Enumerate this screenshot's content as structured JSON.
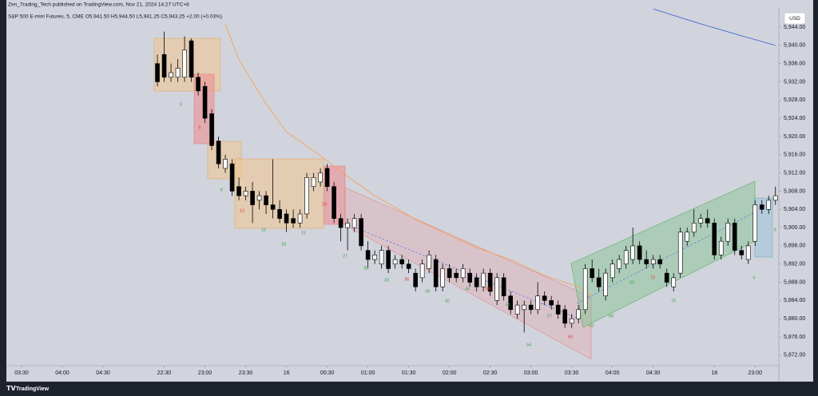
{
  "header": {
    "publisher": "Zen_Trading_Tech published on TradingView.com, Nov 21, 2024 14:27 UTC+8",
    "currency_button": "USD",
    "brand": "TradingView"
  },
  "chart_data": {
    "type": "candlestick",
    "title": "S&P 500 E-mini Futures, 5, CME  O5,941.50 H5,944.50 L5,941.25 C5,943.25 +2.00 (+0.03%)",
    "x": [
      0,
      1,
      2,
      3,
      4,
      5,
      6,
      7,
      8,
      9,
      10,
      11,
      12,
      13,
      14,
      15,
      16,
      17,
      18,
      19,
      20,
      21,
      22,
      23,
      24,
      25,
      26,
      27,
      28,
      29,
      30,
      31,
      32,
      33,
      34,
      35,
      36,
      37,
      38,
      39,
      40,
      41,
      42,
      43,
      44,
      45,
      46,
      47,
      48,
      49,
      50,
      51,
      52,
      53,
      54,
      55,
      56,
      57,
      58,
      59,
      60,
      61,
      62,
      63,
      64,
      65,
      66,
      67,
      68,
      69,
      70,
      71,
      72,
      73,
      74,
      75,
      76,
      77,
      78,
      79,
      80,
      81,
      82,
      83,
      84,
      85,
      86,
      87,
      88,
      89,
      90,
      91
    ],
    "open": [
      5936,
      5938,
      5933,
      5933,
      5933,
      5941,
      5933,
      5931,
      5925,
      5919,
      5913,
      5914,
      5909,
      5907,
      5908,
      5906,
      5907,
      5905,
      5904,
      5903,
      5902,
      5901,
      5903,
      5909,
      5910,
      5913,
      5909,
      5902,
      5900,
      5900,
      5902,
      5895,
      5893,
      5892,
      5895,
      5892,
      5893,
      5892,
      5890,
      5889,
      5891,
      5893,
      5887,
      5891,
      5890,
      5889,
      5890,
      5889,
      5887,
      5890,
      5884,
      5889,
      5885,
      5881,
      5882,
      5883,
      5882,
      5885,
      5884,
      5883,
      5882,
      5879,
      5880,
      5882,
      5891,
      5889,
      5885,
      5889,
      5891,
      5892,
      5893,
      5896,
      5893,
      5892,
      5893,
      5890,
      5887,
      5890,
      5897,
      5899,
      5901,
      5902,
      5901,
      5894,
      5897,
      5901,
      5895,
      5893,
      5897,
      5905,
      5904,
      5906
    ],
    "high": [
      5938,
      5943,
      5936,
      5937,
      5942,
      5941.5,
      5934,
      5932,
      5926,
      5920,
      5916,
      5915,
      5911,
      5909,
      5910,
      5908,
      5908,
      5915,
      5906,
      5904,
      5904,
      5904,
      5912,
      5912,
      5913,
      5914,
      5910,
      5903,
      5902,
      5903,
      5903,
      5897,
      5895,
      5896,
      5896,
      5894,
      5894,
      5893,
      5891,
      5893,
      5895,
      5894,
      5892,
      5892,
      5891,
      5892,
      5891,
      5890,
      5891,
      5891,
      5890,
      5890,
      5886,
      5884,
      5884,
      5884,
      5888,
      5886,
      5885,
      5884,
      5883,
      5881,
      5883,
      5892,
      5893,
      5891,
      5891,
      5893,
      5894,
      5896,
      5900,
      5897,
      5895,
      5894,
      5894,
      5891,
      5890,
      5900,
      5900,
      5904,
      5903,
      5904,
      5902,
      5898,
      5902,
      5902,
      5896,
      5897,
      5906,
      5906,
      5907,
      5909
    ],
    "low": [
      5931,
      5932,
      5932,
      5932,
      5932,
      5932,
      5929,
      5923,
      5917,
      5913,
      5912,
      5907,
      5906,
      5906,
      5901,
      5904,
      5903,
      5902,
      5901,
      5899,
      5900,
      5900,
      5902,
      5908,
      5909,
      5908,
      5901,
      5897,
      5895,
      5899,
      5895,
      5891,
      5892,
      5891,
      5890,
      5891,
      5891,
      5890,
      5886,
      5888,
      5890,
      5886,
      5886,
      5888,
      5888,
      5888,
      5887,
      5886,
      5886,
      5885,
      5883,
      5884,
      5881,
      5880,
      5877,
      5881,
      5881,
      5883,
      5882,
      5880,
      5878,
      5878,
      5879,
      5881,
      5888,
      5886,
      5884,
      5888,
      5890,
      5891,
      5892,
      5892,
      5891,
      5891,
      5891,
      5887,
      5886,
      5889,
      5896,
      5898,
      5900,
      5900,
      5893,
      5893,
      5896,
      5894,
      5893,
      5892,
      5896,
      5903,
      5903,
      5905
    ],
    "close": [
      5932,
      5933,
      5934,
      5935,
      5939,
      5933,
      5930,
      5924,
      5918,
      5914,
      5915,
      5908,
      5907,
      5908,
      5905,
      5907,
      5905,
      5904,
      5902,
      5901,
      5901,
      5903,
      5911,
      5911,
      5912,
      5909,
      5902,
      5900,
      5901,
      5902,
      5896,
      5893,
      5894,
      5895,
      5891,
      5893,
      5892,
      5891,
      5887,
      5892,
      5894,
      5887,
      5891,
      5889,
      5889,
      5891,
      5888,
      5887,
      5890,
      5886,
      5889,
      5885,
      5882,
      5883,
      5883,
      5882,
      5885,
      5884,
      5883,
      5881,
      5879,
      5880,
      5882,
      5891,
      5889,
      5887,
      5890,
      5892,
      5893,
      5895,
      5896,
      5893,
      5892,
      5893,
      5892,
      5888,
      5889,
      5899,
      5899,
      5901,
      5902,
      5901,
      5894,
      5897,
      5901,
      5895,
      5894,
      5896,
      5905,
      5904,
      5906,
      5907
    ],
    "up_color": "#ffffff",
    "down_color": "#000000",
    "wick_color": "#000000",
    "series": [
      {
        "name": "EMA",
        "color": "#f5a05a",
        "x": [
          10,
          12,
          16,
          19,
          24,
          27,
          32,
          38,
          43,
          47,
          52,
          57,
          62,
          64
        ],
        "values": [
          5944.7,
          5936.8,
          5927.2,
          5921,
          5915.8,
          5912.3,
          5907,
          5901.8,
          5898.3,
          5895.6,
          5893,
          5889.5,
          5887,
          5885
        ]
      },
      {
        "name": "MA",
        "color": "#4a6cd4",
        "x": [
          73,
          80,
          86,
          91
        ],
        "values": [
          5948,
          5944.7,
          5942.1,
          5940
        ]
      }
    ],
    "annotations": [
      {
        "text": "3",
        "color": "#43a047"
      },
      {
        "text": "6",
        "color": "#e53935"
      },
      {
        "text": "9",
        "color": "#43a047"
      },
      {
        "text": "12",
        "color": "#e53935"
      },
      {
        "text": "15",
        "color": "#43a047"
      },
      {
        "text": "18",
        "color": "#43a047"
      },
      {
        "text": "21",
        "color": "#43a047"
      },
      {
        "text": "24",
        "color": "#e53935"
      },
      {
        "text": "27",
        "color": "#43a047"
      },
      {
        "text": "30",
        "color": "#43a047"
      },
      {
        "text": "33",
        "color": "#43a047"
      },
      {
        "text": "36",
        "color": "#e53935"
      },
      {
        "text": "39",
        "color": "#43a047"
      },
      {
        "text": "42",
        "color": "#43a047"
      },
      {
        "text": "45",
        "color": "#43a047"
      },
      {
        "text": "48",
        "color": "#e53935"
      },
      {
        "text": "51",
        "color": "#43a047"
      },
      {
        "text": "54",
        "color": "#43a047"
      },
      {
        "text": "57",
        "color": "#43a047"
      },
      {
        "text": "60",
        "color": "#e53935"
      },
      {
        "text": "63",
        "color": "#43a047"
      },
      {
        "text": "66",
        "color": "#43a047"
      },
      {
        "text": "69",
        "color": "#43a047"
      },
      {
        "text": "72",
        "color": "#e53935"
      },
      {
        "text": "75",
        "color": "#43a047"
      },
      {
        "text": "6",
        "color": "#43a047"
      },
      {
        "text": "9",
        "color": "#43a047"
      }
    ],
    "xlim": [
      -22,
      91.5
    ],
    "xticks": [
      {
        "value": -20,
        "label": "03:30"
      },
      {
        "value": -14,
        "label": "04:00"
      },
      {
        "value": -8,
        "label": "04:30"
      },
      {
        "value": 1,
        "label": "22:30"
      },
      {
        "value": 7,
        "label": "23:00"
      },
      {
        "value": 13,
        "label": "23:30"
      },
      {
        "value": 19,
        "label": "16"
      },
      {
        "value": 25,
        "label": "00:30"
      },
      {
        "value": 31,
        "label": "01:00"
      },
      {
        "value": 37,
        "label": "01:30"
      },
      {
        "value": 43,
        "label": "02:00"
      },
      {
        "value": 49,
        "label": "02:30"
      },
      {
        "value": 55,
        "label": "03:00"
      },
      {
        "value": 61,
        "label": "03:30"
      },
      {
        "value": 67,
        "label": "04:00"
      },
      {
        "value": 73,
        "label": "04:30"
      },
      {
        "value": 82,
        "label": "18"
      },
      {
        "value": 88,
        "label": "23:00"
      }
    ],
    "ylim": [
      5869.7,
      5948.2
    ],
    "yticks": [
      {
        "value": 5944,
        "label": "5,944.00"
      },
      {
        "value": 5940,
        "label": "5,940.00"
      },
      {
        "value": 5936,
        "label": "5,936.00"
      },
      {
        "value": 5932,
        "label": "5,932.00"
      },
      {
        "value": 5928,
        "label": "5,928.00"
      },
      {
        "value": 5924,
        "label": "5,924.00"
      },
      {
        "value": 5920,
        "label": "5,920.00"
      },
      {
        "value": 5916,
        "label": "5,916.00"
      },
      {
        "value": 5912,
        "label": "5,912.00"
      },
      {
        "value": 5908,
        "label": "5,908.00"
      },
      {
        "value": 5904,
        "label": "5,904.00"
      },
      {
        "value": 5900,
        "label": "5,900.00"
      },
      {
        "value": 5896,
        "label": "5,896.00"
      },
      {
        "value": 5892,
        "label": "5,892.00"
      },
      {
        "value": 5888,
        "label": "5,888.00"
      },
      {
        "value": 5884,
        "label": "5,884.00"
      },
      {
        "value": 5880,
        "label": "5,880.00"
      },
      {
        "value": 5876,
        "label": "5,876.00"
      },
      {
        "value": 5872,
        "label": "5,872.00"
      }
    ],
    "grid": false
  }
}
